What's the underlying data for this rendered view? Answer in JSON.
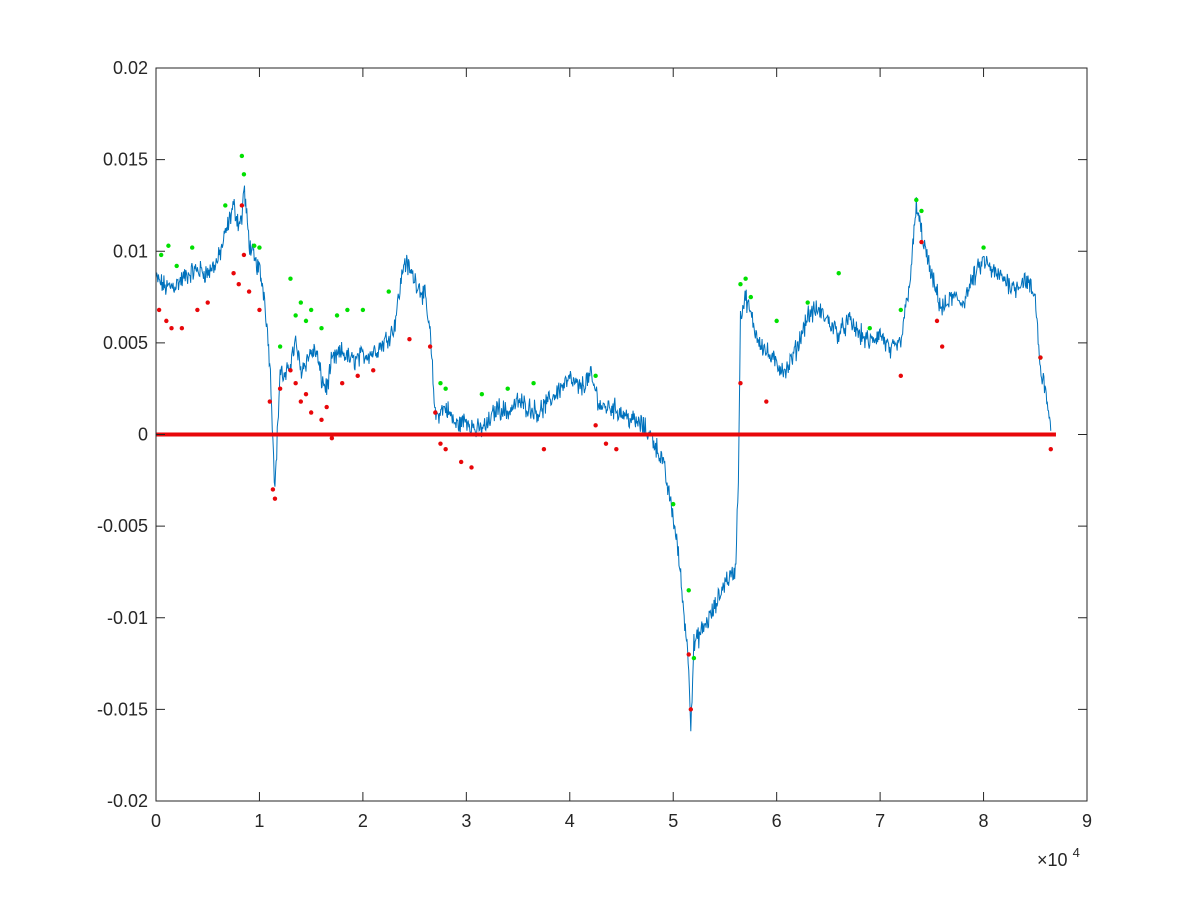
{
  "chart_data": {
    "type": "line",
    "title": "",
    "xlabel": "",
    "ylabel": "",
    "xlim": [
      0,
      90000
    ],
    "ylim": [
      -0.02,
      0.02
    ],
    "x_ticks": [
      0,
      10000,
      20000,
      30000,
      40000,
      50000,
      60000,
      70000,
      80000,
      90000
    ],
    "x_tick_labels": [
      "0",
      "1",
      "2",
      "3",
      "4",
      "5",
      "6",
      "7",
      "8",
      "9"
    ],
    "x_exponent_label": "×10",
    "x_exponent_power": "4",
    "y_ticks": [
      -0.02,
      -0.015,
      -0.01,
      -0.005,
      0,
      0.005,
      0.01,
      0.015,
      0.02
    ],
    "y_tick_labels": [
      "-0.02",
      "-0.015",
      "-0.01",
      "-0.005",
      "0",
      "0.005",
      "0.01",
      "0.015",
      "0.02"
    ],
    "grid": false,
    "colors": {
      "series": "#0072BD",
      "zero_line": "#E8070A",
      "green_markers": "#00E000",
      "red_markers": "#E8070A",
      "axes": "#262626"
    },
    "series": [
      {
        "style": "blue-line",
        "x": [
          0,
          1000,
          2000,
          3000,
          4000,
          5000,
          6000,
          7000,
          7500,
          8000,
          8300,
          8500,
          9000,
          9500,
          10000,
          10500,
          11000,
          11300,
          11500,
          12000,
          12500,
          13000,
          13500,
          14000,
          14500,
          15000,
          15500,
          16000,
          16500,
          17000,
          18000,
          19000,
          20000,
          21000,
          22000,
          23000,
          24000,
          25000,
          26000,
          26500,
          27000,
          28000,
          29000,
          30000,
          31000,
          32000,
          33000,
          34000,
          35000,
          36000,
          37000,
          38000,
          39000,
          40000,
          41000,
          42000,
          43000,
          44000,
          45000,
          46000,
          47000,
          48000,
          49000,
          50000,
          50500,
          51000,
          51500,
          51700,
          52000,
          53000,
          54000,
          55000,
          56000,
          56300,
          56500,
          57000,
          58000,
          59000,
          60000,
          61000,
          62000,
          63000,
          64000,
          65000,
          66000,
          67000,
          68000,
          69000,
          70000,
          71000,
          72000,
          73000,
          73500,
          74000,
          75000,
          76000,
          77000,
          78000,
          79000,
          80000,
          81000,
          82000,
          83000,
          84000,
          85000,
          85500,
          86000,
          86500
        ],
        "y": [
          0.0085,
          0.008,
          0.0082,
          0.0087,
          0.009,
          0.0088,
          0.0095,
          0.0115,
          0.0125,
          0.0115,
          0.0118,
          0.0135,
          0.0105,
          0.0095,
          0.009,
          0.0075,
          0.004,
          0.0,
          -0.003,
          0.0035,
          0.003,
          0.004,
          0.005,
          0.0035,
          0.004,
          0.0045,
          0.0045,
          0.003,
          0.0025,
          0.004,
          0.0045,
          0.004,
          0.0043,
          0.0045,
          0.005,
          0.0058,
          0.0095,
          0.0085,
          0.0075,
          0.0055,
          0.001,
          0.0015,
          0.0005,
          0.0008,
          0.0002,
          0.0005,
          0.0015,
          0.0012,
          0.0018,
          0.0015,
          0.0012,
          0.0018,
          0.0025,
          0.003,
          0.0025,
          0.0032,
          0.0015,
          0.0015,
          0.0012,
          0.0008,
          0.0005,
          -0.0002,
          -0.0015,
          -0.0045,
          -0.0065,
          -0.0095,
          -0.0125,
          -0.0158,
          -0.0115,
          -0.0105,
          -0.0095,
          -0.008,
          -0.0075,
          -0.0025,
          0.0065,
          0.0075,
          0.0055,
          0.0045,
          0.0038,
          0.0035,
          0.0048,
          0.0065,
          0.0068,
          0.0062,
          0.0055,
          0.0062,
          0.0055,
          0.005,
          0.0055,
          0.0045,
          0.005,
          0.009,
          0.0125,
          0.011,
          0.0085,
          0.0068,
          0.0075,
          0.0072,
          0.0085,
          0.0095,
          0.0088,
          0.0085,
          0.008,
          0.0085,
          0.0075,
          0.0035,
          0.0025,
          0.0002
        ]
      },
      {
        "style": "red-zero-line",
        "x": [
          0,
          87000
        ],
        "y": [
          0,
          0
        ]
      }
    ],
    "markers": {
      "green": {
        "x": [
          500,
          1200,
          2000,
          3500,
          6700,
          8300,
          8500,
          9500,
          10000,
          12000,
          13000,
          13500,
          14000,
          14500,
          15000,
          16000,
          17500,
          18500,
          20000,
          22500,
          27500,
          28000,
          31500,
          34000,
          36500,
          42500,
          50000,
          51500,
          52000,
          56500,
          57000,
          57500,
          60000,
          63000,
          66000,
          69000,
          72000,
          73500,
          74000,
          80000,
          85500
        ],
        "y": [
          0.0098,
          0.0103,
          0.0092,
          0.0102,
          0.0125,
          0.0152,
          0.0142,
          0.0103,
          0.0102,
          0.0048,
          0.0085,
          0.0065,
          0.0072,
          0.0062,
          0.0068,
          0.0058,
          0.0065,
          0.0068,
          0.0068,
          0.0078,
          0.0028,
          0.0025,
          0.0022,
          0.0025,
          0.0028,
          0.0032,
          -0.0038,
          -0.0085,
          -0.0122,
          0.0082,
          0.0085,
          0.0075,
          0.0062,
          0.0072,
          0.0088,
          0.0058,
          0.0068,
          0.0128,
          0.0122,
          0.0102,
          0.0042
        ]
      },
      "red": {
        "x": [
          300,
          1000,
          1500,
          2500,
          4000,
          5000,
          7500,
          8000,
          8300,
          8500,
          9000,
          10000,
          11000,
          11300,
          11500,
          12000,
          13000,
          13500,
          14000,
          14500,
          15000,
          16000,
          16500,
          17000,
          18000,
          19500,
          21000,
          24500,
          26500,
          27000,
          27500,
          28000,
          29500,
          30500,
          37500,
          42500,
          43500,
          44500,
          51500,
          51700,
          56500,
          59000,
          72000,
          74000,
          75500,
          76000,
          85500,
          86500
        ],
        "y": [
          0.0068,
          0.0062,
          0.0058,
          0.0058,
          0.0068,
          0.0072,
          0.0088,
          0.0082,
          0.0125,
          0.0098,
          0.0078,
          0.0068,
          0.0018,
          -0.003,
          -0.0035,
          0.0025,
          0.0035,
          0.0028,
          0.0018,
          0.0022,
          0.0012,
          0.0008,
          0.0015,
          -0.0002,
          0.0028,
          0.0032,
          0.0035,
          0.0052,
          0.0048,
          0.0012,
          -0.0005,
          -0.0008,
          -0.0015,
          -0.0018,
          -0.0008,
          0.0005,
          -0.0005,
          -0.0008,
          -0.012,
          -0.015,
          0.0028,
          0.0018,
          0.0032,
          0.0105,
          0.0062,
          0.0048,
          0.0042,
          -0.0008
        ]
      }
    }
  }
}
